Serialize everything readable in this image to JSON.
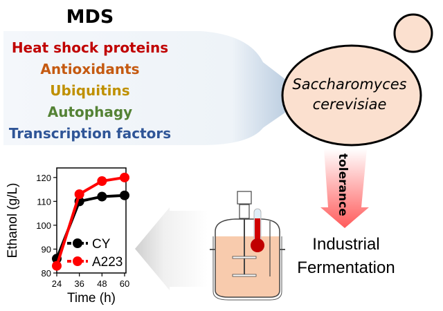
{
  "mds": {
    "title": "MDS",
    "items": [
      {
        "label": "Heat shock proteins",
        "color": "#c00000"
      },
      {
        "label": "Antioxidants",
        "color": "#c55a11"
      },
      {
        "label": "Ubiquitins",
        "color": "#bf9000"
      },
      {
        "label": "Autophagy",
        "color": "#548235"
      },
      {
        "label": "Transcription factors",
        "color": "#2f5597"
      }
    ]
  },
  "yeast": {
    "line1": "Saccharomyces",
    "line2": "cerevisiae",
    "fill": "#fbe0cf"
  },
  "tolerance_arrow": {
    "label": "tolerance",
    "color": "#ff5050"
  },
  "fermentation": {
    "line1": "Industrial",
    "line2": "Fermentation"
  },
  "chart_data": {
    "type": "line",
    "xlabel": "Time (h)",
    "ylabel": "Ethanol (g/L)",
    "x": [
      24,
      36,
      48,
      60
    ],
    "xticks": [
      "24",
      "36",
      "48",
      "60"
    ],
    "yticks": [
      "80",
      "90",
      "100",
      "110",
      "120"
    ],
    "ylim": [
      80,
      124
    ],
    "xlim": [
      24,
      60
    ],
    "legend_placement": "bottom-right",
    "series": [
      {
        "name": "CY",
        "values": [
          86,
          110,
          112,
          112.5
        ],
        "color": "#000000"
      },
      {
        "name": "A223",
        "values": [
          83,
          113,
          118.5,
          120
        ],
        "color": "#ff0000"
      }
    ]
  }
}
